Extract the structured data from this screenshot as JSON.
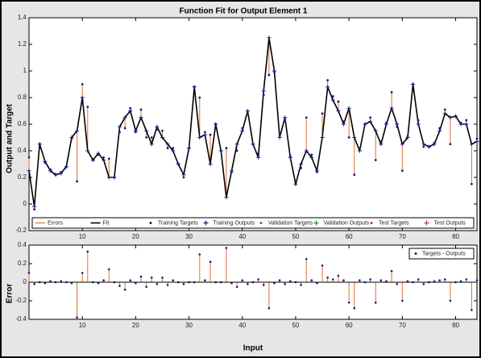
{
  "chart_data": [
    {
      "type": "fit",
      "title": "Function Fit for Output Element 1",
      "ylabel": "Output and Target",
      "x": [
        0,
        1,
        2,
        3,
        4,
        5,
        6,
        7,
        8,
        9,
        10,
        11,
        12,
        13,
        14,
        15,
        16,
        17,
        18,
        19,
        20,
        21,
        22,
        23,
        24,
        25,
        26,
        27,
        28,
        29,
        30,
        31,
        32,
        33,
        34,
        35,
        36,
        37,
        38,
        39,
        40,
        41,
        42,
        43,
        44,
        45,
        46,
        47,
        48,
        49,
        50,
        51,
        52,
        53,
        54,
        55,
        56,
        57,
        58,
        59,
        60,
        61,
        62,
        63,
        64,
        65,
        66,
        67,
        68,
        69,
        70,
        71,
        72,
        73,
        74,
        75,
        76,
        77,
        78,
        79,
        80,
        81,
        82,
        83,
        84
      ],
      "xlim": [
        0,
        84
      ],
      "xticks": [
        10,
        20,
        30,
        40,
        50,
        60,
        70,
        80
      ],
      "ylim": [
        -0.2,
        1.4
      ],
      "yticks": [
        -0.2,
        0,
        0.2,
        0.4,
        0.6,
        0.8,
        1,
        1.2,
        1.4
      ],
      "series": [
        {
          "name": "Errors",
          "color": "#e07030"
        },
        {
          "name": "Fit",
          "color": "#000000",
          "values": [
            0.25,
            -0.02,
            0.45,
            0.32,
            0.25,
            0.22,
            0.23,
            0.28,
            0.5,
            0.55,
            0.8,
            0.4,
            0.33,
            0.38,
            0.33,
            0.2,
            0.2,
            0.58,
            0.65,
            0.7,
            0.55,
            0.65,
            0.55,
            0.45,
            0.58,
            0.5,
            0.45,
            0.4,
            0.3,
            0.22,
            0.42,
            0.88,
            0.5,
            0.52,
            0.3,
            0.6,
            0.4,
            0.05,
            0.25,
            0.45,
            0.55,
            0.7,
            0.45,
            0.35,
            0.85,
            1.25,
            1.0,
            0.5,
            0.65,
            0.35,
            0.15,
            0.3,
            0.4,
            0.35,
            0.25,
            0.5,
            0.88,
            0.78,
            0.7,
            0.6,
            0.72,
            0.5,
            0.4,
            0.6,
            0.62,
            0.55,
            0.45,
            0.6,
            0.72,
            0.6,
            0.45,
            0.5,
            0.9,
            0.6,
            0.45,
            0.43,
            0.45,
            0.55,
            0.68,
            0.65,
            0.66,
            0.6,
            0.6,
            0.45,
            0.47
          ]
        },
        {
          "name": "Training Targets",
          "color": "#1a1a80",
          "values": [
            0.35,
            -0.04,
            0.45,
            0.31,
            0.26,
            0.22,
            0.24,
            0.28,
            0.49,
            0.17,
            0.9,
            0.73,
            0.33,
            0.37,
            0.35,
            0.34,
            0.2,
            0.54,
            0.57,
            0.72,
            0.54,
            0.71,
            0.5,
            0.5,
            0.56,
            0.55,
            0.42,
            0.42,
            0.3,
            0.2,
            0.42,
            0.88,
            0.8,
            0.54,
            0.52,
            0.6,
            0.4,
            0.42,
            0.24,
            0.4,
            0.57,
            0.68,
            0.45,
            0.38,
            0.82,
            0.97,
            0.99,
            0.52,
            0.63,
            0.36,
            0.15,
            0.27,
            0.65,
            0.37,
            0.24,
            0.68,
            0.93,
            0.81,
            0.77,
            0.62,
            0.5,
            0.22,
            0.42,
            0.6,
            0.65,
            0.33,
            0.47,
            0.61,
            0.84,
            0.58,
            0.25,
            0.51,
            0.9,
            0.63,
            0.43,
            0.43,
            0.46,
            0.57,
            0.71,
            0.45,
            0.66,
            0.61,
            0.63,
            0.15,
            0.49
          ]
        },
        {
          "name": "Training Outputs",
          "color": "#1a1a80"
        },
        {
          "name": "Validation Targets",
          "color": "#2a8a2a"
        },
        {
          "name": "Validation Outputs",
          "color": "#2a8a2a"
        },
        {
          "name": "Test Targets",
          "color": "#c03030"
        },
        {
          "name": "Test Outputs",
          "color": "#c03030"
        }
      ]
    },
    {
      "type": "stem",
      "ylabel": "Error",
      "xlabel": "Input",
      "x": [
        0,
        1,
        2,
        3,
        4,
        5,
        6,
        7,
        8,
        9,
        10,
        11,
        12,
        13,
        14,
        15,
        16,
        17,
        18,
        19,
        20,
        21,
        22,
        23,
        24,
        25,
        26,
        27,
        28,
        29,
        30,
        31,
        32,
        33,
        34,
        35,
        36,
        37,
        38,
        39,
        40,
        41,
        42,
        43,
        44,
        45,
        46,
        47,
        48,
        49,
        50,
        51,
        52,
        53,
        54,
        55,
        56,
        57,
        58,
        59,
        60,
        61,
        62,
        63,
        64,
        65,
        66,
        67,
        68,
        69,
        70,
        71,
        72,
        73,
        74,
        75,
        76,
        77,
        78,
        79,
        80,
        81,
        82,
        83,
        84
      ],
      "xlim": [
        0,
        84
      ],
      "xticks": [
        10,
        20,
        30,
        40,
        50,
        60,
        70,
        80
      ],
      "ylim": [
        -0.4,
        0.4
      ],
      "yticks": [
        -0.4,
        -0.2,
        0,
        0.2,
        0.4
      ],
      "series": [
        {
          "name": "Targets - Outputs",
          "color": "#e07030",
          "values": [
            0.1,
            -0.02,
            0,
            -0.01,
            0.01,
            0,
            0.01,
            0,
            -0.01,
            -0.38,
            0.1,
            0.33,
            0,
            -0.01,
            0.02,
            0.14,
            0,
            -0.04,
            -0.08,
            0.02,
            -0.01,
            0.06,
            -0.05,
            0.05,
            -0.02,
            0.05,
            -0.03,
            0.02,
            0,
            -0.02,
            0,
            0,
            0.3,
            0.02,
            0.22,
            0,
            0,
            0.37,
            -0.01,
            -0.05,
            0.02,
            -0.02,
            0,
            0.03,
            -0.03,
            -0.28,
            -0.01,
            0.02,
            -0.02,
            0.01,
            0,
            -0.03,
            0.25,
            0.02,
            -0.01,
            0.18,
            0.05,
            0.03,
            0.07,
            0.02,
            -0.22,
            -0.28,
            0.02,
            0,
            0.03,
            -0.22,
            0.02,
            0.01,
            0.12,
            -0.02,
            -0.2,
            0.01,
            0,
            0.03,
            -0.02,
            0,
            0.01,
            0.02,
            0.03,
            -0.2,
            0,
            0.01,
            0.03,
            -0.3,
            0.02
          ]
        }
      ]
    }
  ]
}
